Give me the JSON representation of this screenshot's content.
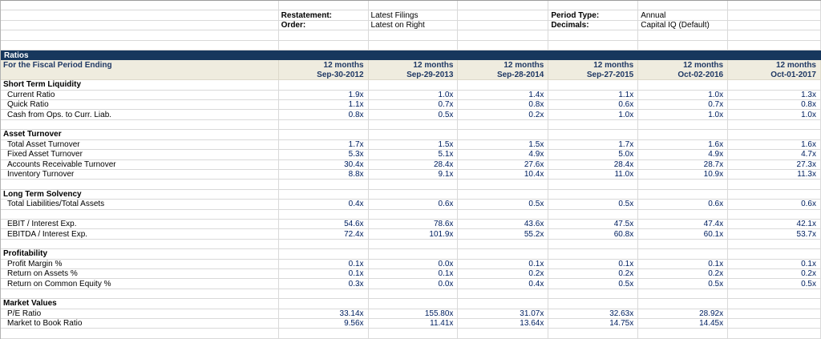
{
  "meta_bar": {
    "restatement": {
      "label": "Restatement:",
      "value": "Latest Filings"
    },
    "order": {
      "label": "Order:",
      "value": "Latest on Right"
    },
    "period_type": {
      "label": "Period Type:",
      "value": "Annual"
    },
    "decimals": {
      "label": "Decimals:",
      "value": "Capital IQ (Default)"
    }
  },
  "ratios_bar_title": "Ratios",
  "header": {
    "fiscal_label": "For the Fiscal Period Ending",
    "period_label": "12 months",
    "dates": [
      "Sep-30-2012",
      "Sep-29-2013",
      "Sep-28-2014",
      "Sep-27-2015",
      "Oct-02-2016",
      "Oct-01-2017"
    ]
  },
  "colors": {
    "banner_bg": "#17375d",
    "header_bg": "#efecdf",
    "header_text": "#1f3864",
    "value_text": "#002060",
    "grid_line": "#d9d9d9"
  },
  "rows": [
    {
      "type": "section",
      "label": "Short Term Liquidity"
    },
    {
      "type": "data",
      "label": "Current Ratio",
      "values": [
        "1.9x",
        "1.0x",
        "1.4x",
        "1.1x",
        "1.0x",
        "1.3x"
      ]
    },
    {
      "type": "data",
      "label": "Quick Ratio",
      "values": [
        "1.1x",
        "0.7x",
        "0.8x",
        "0.6x",
        "0.7x",
        "0.8x"
      ]
    },
    {
      "type": "data",
      "label": "Cash from Ops. to Curr. Liab.",
      "values": [
        "0.8x",
        "0.5x",
        "0.2x",
        "1.0x",
        "1.0x",
        "1.0x"
      ]
    },
    {
      "type": "blank"
    },
    {
      "type": "section",
      "label": "Asset Turnover"
    },
    {
      "type": "data",
      "label": "Total Asset Turnover",
      "values": [
        "1.7x",
        "1.5x",
        "1.5x",
        "1.7x",
        "1.6x",
        "1.6x"
      ]
    },
    {
      "type": "data",
      "label": "Fixed Asset Turnover",
      "values": [
        "5.3x",
        "5.1x",
        "4.9x",
        "5.0x",
        "4.9x",
        "4.7x"
      ]
    },
    {
      "type": "data",
      "label": "Accounts Receivable Turnover",
      "values": [
        "30.4x",
        "28.4x",
        "27.6x",
        "28.4x",
        "28.7x",
        "27.3x"
      ]
    },
    {
      "type": "data",
      "label": "Inventory Turnover",
      "values": [
        "8.8x",
        "9.1x",
        "10.4x",
        "11.0x",
        "10.9x",
        "11.3x"
      ]
    },
    {
      "type": "blank"
    },
    {
      "type": "section",
      "label": "Long Term Solvency"
    },
    {
      "type": "data",
      "label": "Total Liabilities/Total Assets",
      "values": [
        "0.4x",
        "0.6x",
        "0.5x",
        "0.5x",
        "0.6x",
        "0.6x"
      ]
    },
    {
      "type": "blank"
    },
    {
      "type": "data",
      "label": "EBIT / Interest Exp.",
      "values": [
        "54.6x",
        "78.6x",
        "43.6x",
        "47.5x",
        "47.4x",
        "42.1x"
      ]
    },
    {
      "type": "data",
      "label": "EBITDA / Interest Exp.",
      "values": [
        "72.4x",
        "101.9x",
        "55.2x",
        "60.8x",
        "60.1x",
        "53.7x"
      ]
    },
    {
      "type": "blank"
    },
    {
      "type": "section",
      "label": "Profitability"
    },
    {
      "type": "data",
      "label": "Profit Margin %",
      "values": [
        "0.1x",
        "0.0x",
        "0.1x",
        "0.1x",
        "0.1x",
        "0.1x"
      ]
    },
    {
      "type": "data",
      "label": "Return on Assets %",
      "values": [
        "0.1x",
        "0.1x",
        "0.2x",
        "0.2x",
        "0.2x",
        "0.2x"
      ]
    },
    {
      "type": "data",
      "label": "Return on Common Equity %",
      "values": [
        "0.3x",
        "0.0x",
        "0.4x",
        "0.5x",
        "0.5x",
        "0.5x"
      ]
    },
    {
      "type": "blank"
    },
    {
      "type": "section",
      "label": "Market Values"
    },
    {
      "type": "data",
      "label": "P/E Ratio",
      "values": [
        "33.14x",
        "155.80x",
        "31.07x",
        "32.63x",
        "28.92x",
        ""
      ]
    },
    {
      "type": "data",
      "label": "Market to Book Ratio",
      "values": [
        "9.56x",
        "11.41x",
        "13.64x",
        "14.75x",
        "14.45x",
        ""
      ]
    },
    {
      "type": "blank"
    }
  ]
}
